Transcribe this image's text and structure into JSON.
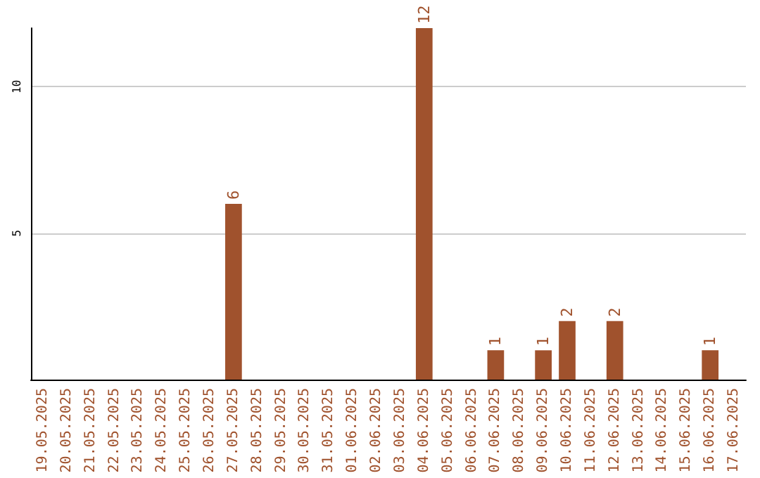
{
  "chart_data": {
    "type": "bar",
    "categories": [
      "19.05.2025",
      "20.05.2025",
      "21.05.2025",
      "22.05.2025",
      "23.05.2025",
      "24.05.2025",
      "25.05.2025",
      "26.05.2025",
      "27.05.2025",
      "28.05.2025",
      "29.05.2025",
      "30.05.2025",
      "31.05.2025",
      "01.06.2025",
      "02.06.2025",
      "03.06.2025",
      "04.06.2025",
      "05.06.2025",
      "06.06.2025",
      "07.06.2025",
      "08.06.2025",
      "09.06.2025",
      "10.06.2025",
      "11.06.2025",
      "12.06.2025",
      "13.06.2025",
      "14.06.2025",
      "15.06.2025",
      "16.06.2025",
      "17.06.2025"
    ],
    "values": [
      null,
      null,
      null,
      null,
      null,
      null,
      null,
      null,
      6,
      null,
      null,
      null,
      null,
      null,
      null,
      null,
      12,
      null,
      null,
      1,
      null,
      1,
      2,
      null,
      2,
      null,
      null,
      null,
      1,
      null
    ],
    "color": "#a0522d",
    "ylim": [
      0,
      12
    ],
    "yticks": [
      {
        "value": 0,
        "label": null
      },
      5,
      10
    ],
    "grid": "y",
    "data_labels": true
  }
}
